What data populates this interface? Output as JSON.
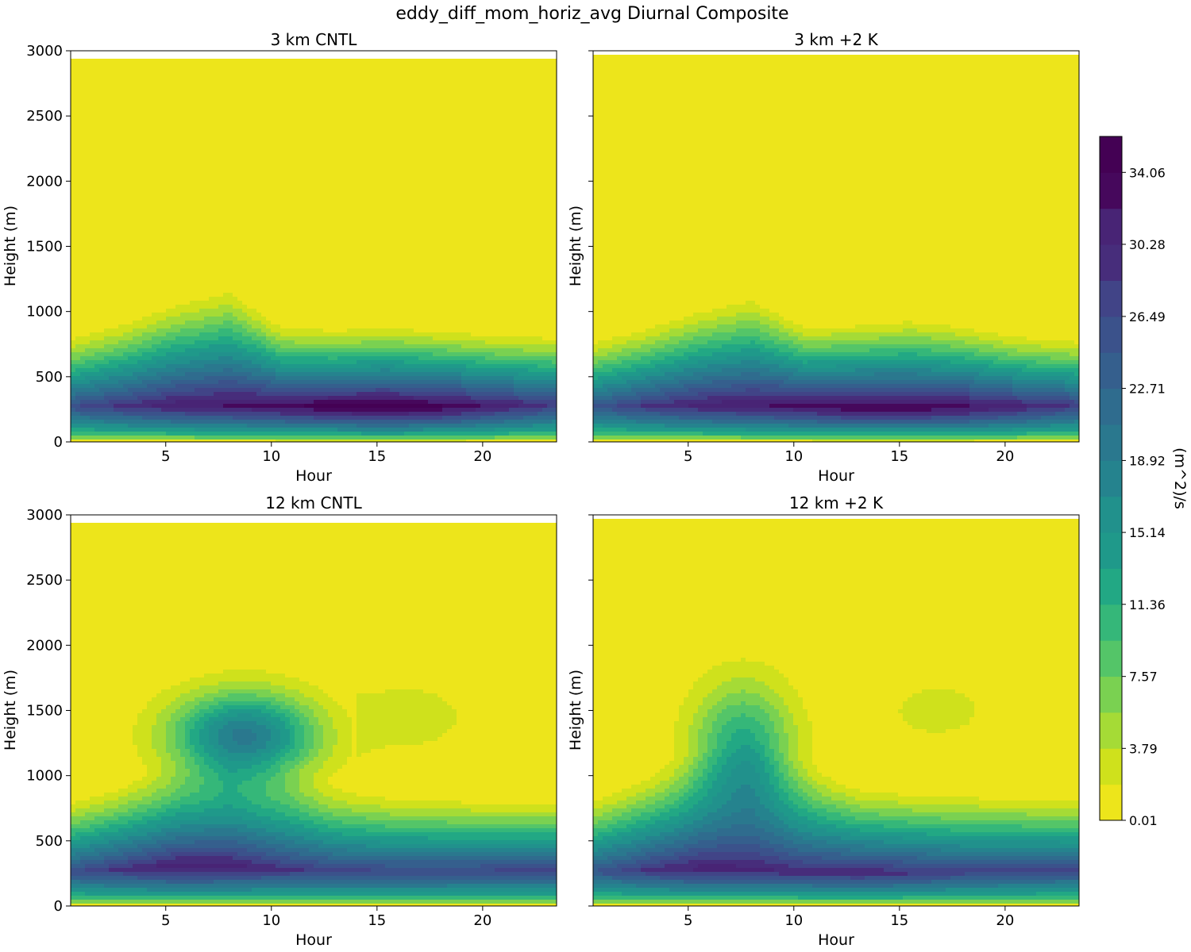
{
  "figure_title": "eddy_diff_mom_horiz_avg Diurnal Composite",
  "colorbar": {
    "label": "(m^2)/s",
    "tick_labels": [
      "0.01",
      "3.79",
      "7.57",
      "11.36",
      "15.14",
      "18.92",
      "22.71",
      "26.49",
      "30.28",
      "34.06"
    ],
    "level_min": 0.01,
    "level_step": 1.8915,
    "level_count": 19,
    "colors": [
      "#ede51b",
      "#cfe11c",
      "#a5db36",
      "#7ad151",
      "#54c568",
      "#35b779",
      "#22a884",
      "#1f998a",
      "#21918c",
      "#25838e",
      "#2a788e",
      "#2f6c8e",
      "#355f8d",
      "#3b528b",
      "#414487",
      "#472d7b",
      "#482475",
      "#46085c",
      "#440154"
    ]
  },
  "chart_data": [
    {
      "type": "heatmap",
      "subtype": "filled-contour",
      "title": "3 km CNTL",
      "xlabel": "Hour",
      "ylabel": "Height (m)",
      "xlim": [
        0.5,
        23.5
      ],
      "ylim": [
        0,
        3000
      ],
      "data_top": 2950,
      "xticks": [
        5,
        10,
        15,
        20
      ],
      "yticks": [
        0,
        500,
        1000,
        1500,
        2000,
        2500,
        3000
      ],
      "hours": [
        0.5,
        3,
        5.5,
        8,
        10.5,
        13,
        15.5,
        18,
        20.5,
        23.5
      ],
      "boundary_height": [
        860,
        980,
        1140,
        1250,
        940,
        920,
        940,
        910,
        880,
        860
      ],
      "max_height": [
        270,
        275,
        280,
        280,
        275,
        270,
        265,
        270,
        275,
        285
      ],
      "max_value": [
        26,
        29,
        31.5,
        32.5,
        33.5,
        35,
        35.5,
        34.5,
        31.5,
        28.5
      ],
      "upper_blob": null
    },
    {
      "type": "heatmap",
      "subtype": "filled-contour",
      "title": "3 km +2 K",
      "xlabel": "Hour",
      "ylabel": "Height (m)",
      "xlim": [
        0.5,
        23.5
      ],
      "ylim": [
        0,
        3000
      ],
      "data_top": 2980,
      "xticks": [
        5,
        10,
        15,
        20
      ],
      "yticks": [
        0,
        500,
        1000,
        1500,
        2000,
        2500,
        3000
      ],
      "hours": [
        0.5,
        3,
        5.5,
        8,
        10.5,
        13,
        15.5,
        18,
        20.5,
        23.5
      ],
      "boundary_height": [
        830,
        940,
        1080,
        1180,
        950,
        960,
        1000,
        950,
        870,
        830
      ],
      "max_height": [
        270,
        275,
        280,
        280,
        275,
        265,
        260,
        265,
        270,
        280
      ],
      "max_value": [
        25,
        28.5,
        31,
        32,
        33,
        34.5,
        34,
        33,
        31,
        28
      ],
      "upper_blob": null
    },
    {
      "type": "heatmap",
      "subtype": "filled-contour",
      "title": "12 km CNTL",
      "xlabel": "Hour",
      "ylabel": "Height (m)",
      "xlim": [
        0.5,
        23.5
      ],
      "ylim": [
        0,
        3000
      ],
      "data_top": 2950,
      "xticks": [
        5,
        10,
        15,
        20
      ],
      "yticks": [
        0,
        500,
        1000,
        1500,
        2000,
        2500,
        3000
      ],
      "hours": [
        0.5,
        3,
        5.5,
        8,
        10.5,
        13,
        15.5,
        18,
        20.5,
        23.5
      ],
      "boundary_height": [
        860,
        980,
        1120,
        1200,
        1100,
        950,
        900,
        880,
        860,
        850
      ],
      "max_height": [
        260,
        280,
        300,
        300,
        280,
        265,
        260,
        260,
        265,
        275
      ],
      "max_value": [
        26,
        29,
        31.8,
        31.5,
        29,
        27.5,
        27,
        27,
        27,
        27.5
      ],
      "upper_blob": {
        "hour": 8.7,
        "height": 1300,
        "peak": 19.5,
        "sx": 3.4,
        "sy": 330,
        "min_hour": 1.2
      },
      "upper_blob_2": {
        "hour": 16.5,
        "height": 1450,
        "peak": 3.0,
        "sx": 3.2,
        "sy": 300,
        "min_hour": 14
      }
    },
    {
      "type": "heatmap",
      "subtype": "filled-contour",
      "title": "12 km +2 K",
      "xlabel": "Hour",
      "ylabel": "Height (m)",
      "xlim": [
        0.5,
        23.5
      ],
      "ylim": [
        0,
        3000
      ],
      "data_top": 2980,
      "xticks": [
        5,
        10,
        15,
        20
      ],
      "yticks": [
        0,
        500,
        1000,
        1500,
        2000,
        2500,
        3000
      ],
      "hours": [
        0.5,
        3,
        5.5,
        8,
        10.5,
        13,
        15.5,
        18,
        20.5,
        23.5
      ],
      "boundary_height": [
        880,
        1050,
        1200,
        1300,
        1120,
        970,
        930,
        910,
        900,
        880
      ],
      "max_height": [
        260,
        275,
        285,
        280,
        260,
        255,
        255,
        260,
        265,
        275
      ],
      "max_value": [
        25,
        28.5,
        31,
        30.5,
        29.5,
        29.8,
        29,
        27.5,
        27,
        27
      ],
      "upper_blob": {
        "hour": 7.6,
        "height": 1200,
        "peak": 12.5,
        "sx": 2.4,
        "sy": 500,
        "min_hour": 2
      },
      "upper_blob_2": {
        "hour": 16.8,
        "height": 1500,
        "peak": 3.2,
        "sx": 2.4,
        "sy": 220,
        "min_hour": 14.5
      }
    }
  ]
}
